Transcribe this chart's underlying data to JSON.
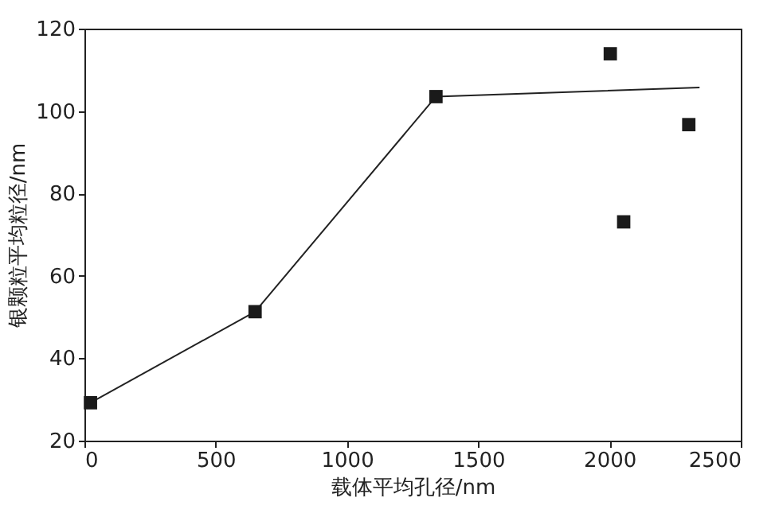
{
  "chart_data": {
    "type": "scatter",
    "xlabel": "载体平均孔径/nm",
    "ylabel": "银颗粒平均粒径/nm",
    "xlim": [
      0,
      2500
    ],
    "xticks": [
      0,
      500,
      1000,
      1500,
      2000,
      2500
    ],
    "ylim": [
      20,
      120
    ],
    "yticks": [
      20,
      40,
      60,
      80,
      100,
      120
    ],
    "grid": false,
    "series": [
      {
        "type": "line",
        "color": "#222222",
        "marker": "none",
        "x": [
          23,
          650,
          1339,
          2343
        ],
        "values": [
          29.2,
          51.3,
          103.5,
          105.7
        ]
      },
      {
        "color": "#1a1a1a",
        "marker": "square",
        "x": [
          23,
          650,
          1339,
          2003,
          2054,
          2302
        ],
        "values": [
          29.2,
          51.3,
          103.5,
          113.9,
          73.1,
          96.7
        ]
      }
    ]
  }
}
